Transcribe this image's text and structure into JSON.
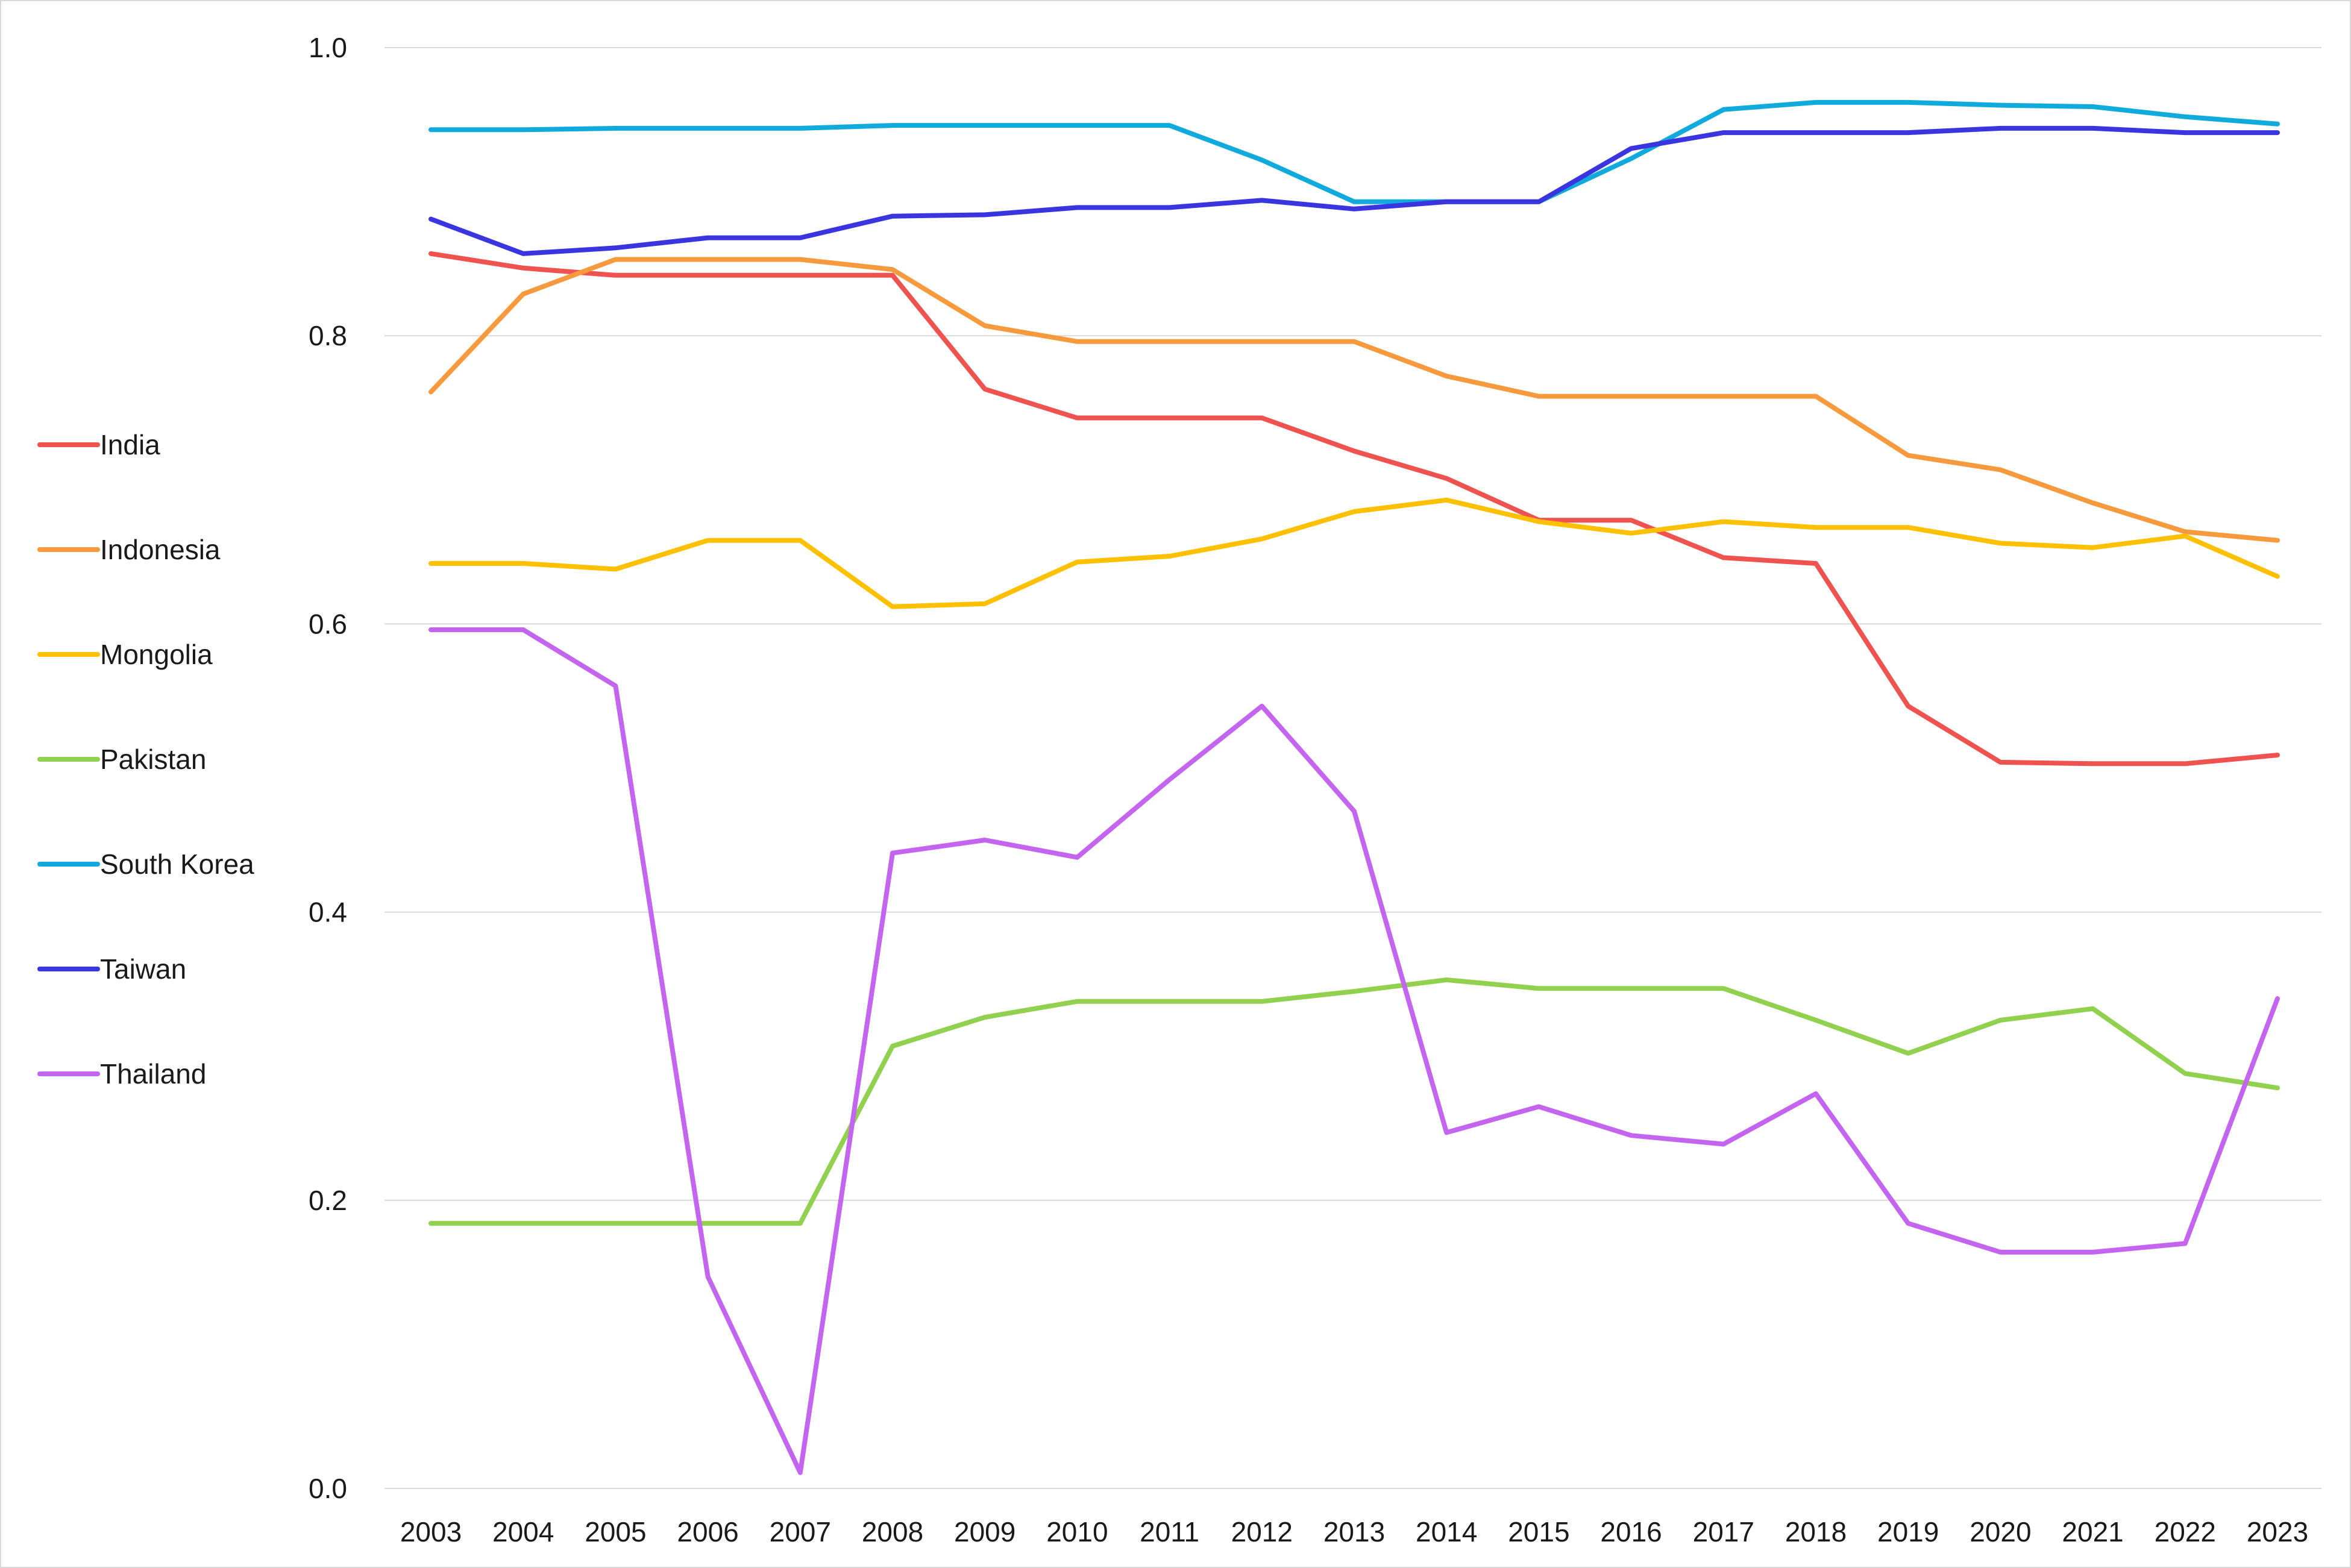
{
  "chart_data": {
    "type": "line",
    "title": "",
    "xlabel": "",
    "ylabel": "",
    "categories": [
      "2003",
      "2004",
      "2005",
      "2006",
      "2007",
      "2008",
      "2009",
      "2010",
      "2011",
      "2012",
      "2013",
      "2014",
      "2015",
      "2016",
      "2017",
      "2018",
      "2019",
      "2020",
      "2021",
      "2022",
      "2023"
    ],
    "ylim": [
      0,
      1.0
    ],
    "yticks": [
      "0.0",
      "0.2",
      "0.4",
      "0.6",
      "0.8",
      "1.0"
    ],
    "grid": "horizontal",
    "legend_position": "left",
    "series": [
      {
        "name": "India",
        "color": "#ef5350",
        "values": [
          0.857,
          0.847,
          0.842,
          0.842,
          0.842,
          0.842,
          0.763,
          0.743,
          0.743,
          0.743,
          0.72,
          0.701,
          0.672,
          0.672,
          0.646,
          0.642,
          0.543,
          0.504,
          0.503,
          0.503,
          0.509
        ]
      },
      {
        "name": "Indonesia",
        "color": "#f79a3e",
        "values": [
          0.761,
          0.829,
          0.853,
          0.853,
          0.853,
          0.846,
          0.807,
          0.796,
          0.796,
          0.796,
          0.796,
          0.772,
          0.758,
          0.758,
          0.758,
          0.758,
          0.717,
          0.707,
          0.684,
          0.664,
          0.658
        ]
      },
      {
        "name": "Mongolia",
        "color": "#ffc000",
        "values": [
          0.642,
          0.642,
          0.638,
          0.658,
          0.658,
          0.612,
          0.614,
          0.643,
          0.647,
          0.659,
          0.678,
          0.686,
          0.671,
          0.663,
          0.671,
          0.667,
          0.667,
          0.656,
          0.653,
          0.661,
          0.633
        ]
      },
      {
        "name": "Pakistan",
        "color": "#92d050",
        "values": [
          0.184,
          0.184,
          0.184,
          0.184,
          0.184,
          0.307,
          0.327,
          0.338,
          0.338,
          0.338,
          0.345,
          0.353,
          0.347,
          0.347,
          0.347,
          0.325,
          0.302,
          0.325,
          0.333,
          0.288,
          0.278
        ]
      },
      {
        "name": "South Korea",
        "color": "#11aadd",
        "values": [
          0.943,
          0.943,
          0.944,
          0.944,
          0.944,
          0.946,
          0.946,
          0.946,
          0.946,
          0.922,
          0.893,
          0.893,
          0.893,
          0.923,
          0.957,
          0.962,
          0.962,
          0.96,
          0.959,
          0.952,
          0.947
        ]
      },
      {
        "name": "Taiwan",
        "color": "#3b35e0",
        "values": [
          0.881,
          0.857,
          0.861,
          0.868,
          0.868,
          0.883,
          0.884,
          0.889,
          0.889,
          0.894,
          0.888,
          0.893,
          0.893,
          0.93,
          0.941,
          0.941,
          0.941,
          0.944,
          0.944,
          0.941,
          0.941
        ]
      },
      {
        "name": "Thailand",
        "color": "#c465f0",
        "values": [
          0.596,
          0.596,
          0.557,
          0.147,
          0.011,
          0.441,
          0.45,
          0.438,
          0.492,
          0.543,
          0.47,
          0.247,
          0.265,
          0.245,
          0.239,
          0.274,
          0.184,
          0.164,
          0.164,
          0.17,
          0.34
        ]
      }
    ]
  }
}
